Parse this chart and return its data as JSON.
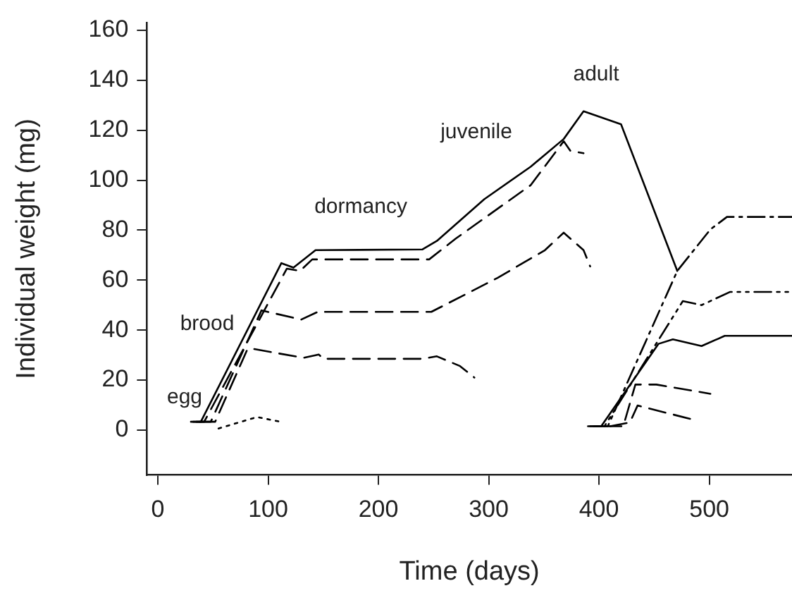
{
  "chart_data": {
    "type": "line",
    "xlabel": "Time (days)",
    "ylabel": "Individual weight (mg)",
    "xlim": [
      -10,
      575
    ],
    "ylim": [
      -18,
      163
    ],
    "xticks": [
      0,
      100,
      200,
      300,
      400,
      500
    ],
    "yticks": [
      0,
      20,
      40,
      60,
      80,
      100,
      120,
      140,
      160
    ],
    "grid": false,
    "legend": false,
    "marker": "none",
    "series": [
      {
        "color": "#000000",
        "line_style": "solid",
        "x": [
          30,
          39,
          112,
          123,
          143,
          240,
          253,
          296,
          338,
          368,
          386,
          420,
          471
        ],
        "values": [
          3.3,
          3.3,
          66.8,
          65,
          72,
          72.3,
          75.7,
          92.4,
          105.4,
          116.5,
          127.6,
          122.4,
          63.7
        ]
      },
      {
        "color": "#000000",
        "line_style": "dashed",
        "x": [
          32,
          42,
          117,
          129,
          140,
          246,
          270,
          338,
          368,
          374,
          386
        ],
        "values": [
          3.3,
          3.3,
          64.6,
          63.7,
          68.3,
          68.3,
          76.6,
          98,
          115.6,
          111.8,
          110.8
        ]
      },
      {
        "color": "#000000",
        "line_style": "dashed",
        "x": [
          35,
          48,
          94,
          130,
          145,
          248,
          308,
          351,
          368,
          386,
          392
        ],
        "values": [
          3.3,
          3.3,
          47.9,
          44.2,
          47.3,
          47.3,
          60.9,
          72,
          79,
          72,
          65.5
        ]
      },
      {
        "color": "#000000",
        "line_style": "dashed",
        "x": [
          38,
          52,
          81,
          85,
          132,
          146,
          150,
          240,
          253,
          274,
          287
        ],
        "values": [
          3.3,
          3.3,
          32.1,
          32.6,
          28.9,
          30.2,
          28.5,
          28.5,
          29.5,
          25.6,
          21
        ]
      },
      {
        "color": "#000000",
        "line_style": "dotted",
        "x": [
          55,
          90,
          111
        ],
        "values": [
          0.6,
          5.2,
          3.3
        ]
      },
      {
        "color": "#000000",
        "line_style": "solid",
        "x": [
          390,
          402,
          454,
          467,
          493,
          514,
          575
        ],
        "values": [
          1.5,
          1.5,
          34.5,
          36.3,
          33.6,
          37.7,
          37.7
        ]
      },
      {
        "color": "#000000",
        "line_style": "dashdotdot",
        "x": [
          392,
          405,
          476,
          493,
          519,
          575
        ],
        "values": [
          1.5,
          1.5,
          51.6,
          50,
          55.3,
          55.3
        ]
      },
      {
        "color": "#000000",
        "line_style": "dashdot",
        "x": [
          395,
          408,
          471,
          501,
          516,
          575
        ],
        "values": [
          1.5,
          1.5,
          63.7,
          80.3,
          85.3,
          85.3
        ]
      },
      {
        "color": "#000000",
        "line_style": "dashed",
        "x": [
          405,
          422,
          433,
          452,
          501
        ],
        "values": [
          1.5,
          1.5,
          18.2,
          18.2,
          14.5
        ]
      },
      {
        "color": "#000000",
        "line_style": "dashed",
        "x": [
          410,
          428,
          435,
          484
        ],
        "values": [
          1.5,
          3,
          9.8,
          4.3
        ]
      }
    ],
    "annotations": [
      "egg",
      "brood",
      "dormancy",
      "juvenile",
      "adult"
    ]
  }
}
